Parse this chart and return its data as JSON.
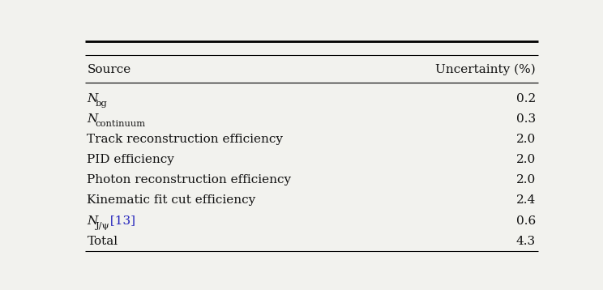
{
  "col1_header": "Source",
  "col2_header": "Uncertainty (%)",
  "rows": [
    {
      "source_parts": [
        {
          "text": "N",
          "style": "italic"
        },
        {
          "text": "bg",
          "style": "subscript"
        }
      ],
      "value": "0.2"
    },
    {
      "source_parts": [
        {
          "text": "N",
          "style": "italic"
        },
        {
          "text": "continuum",
          "style": "subscript"
        }
      ],
      "value": "0.3"
    },
    {
      "source_parts": [
        {
          "text": "Track reconstruction efficiency",
          "style": "normal"
        }
      ],
      "value": "2.0"
    },
    {
      "source_parts": [
        {
          "text": "PID efficiency",
          "style": "normal"
        }
      ],
      "value": "2.0"
    },
    {
      "source_parts": [
        {
          "text": "Photon reconstruction efficiency",
          "style": "normal"
        }
      ],
      "value": "2.0"
    },
    {
      "source_parts": [
        {
          "text": "Kinematic fit cut efficiency",
          "style": "normal"
        }
      ],
      "value": "2.4"
    },
    {
      "source_parts": [
        {
          "text": "N",
          "style": "italic"
        },
        {
          "text": "J/ψ",
          "style": "subscript"
        },
        {
          "text": " [13]",
          "style": "citation"
        }
      ],
      "value": "0.6"
    },
    {
      "source_parts": [
        {
          "text": "Total",
          "style": "normal"
        }
      ],
      "value": "4.3"
    }
  ],
  "bg_color": "#f2f2ee",
  "text_color": "#111111",
  "citation_color": "#2222bb",
  "font_size": 11,
  "header_font_size": 11
}
